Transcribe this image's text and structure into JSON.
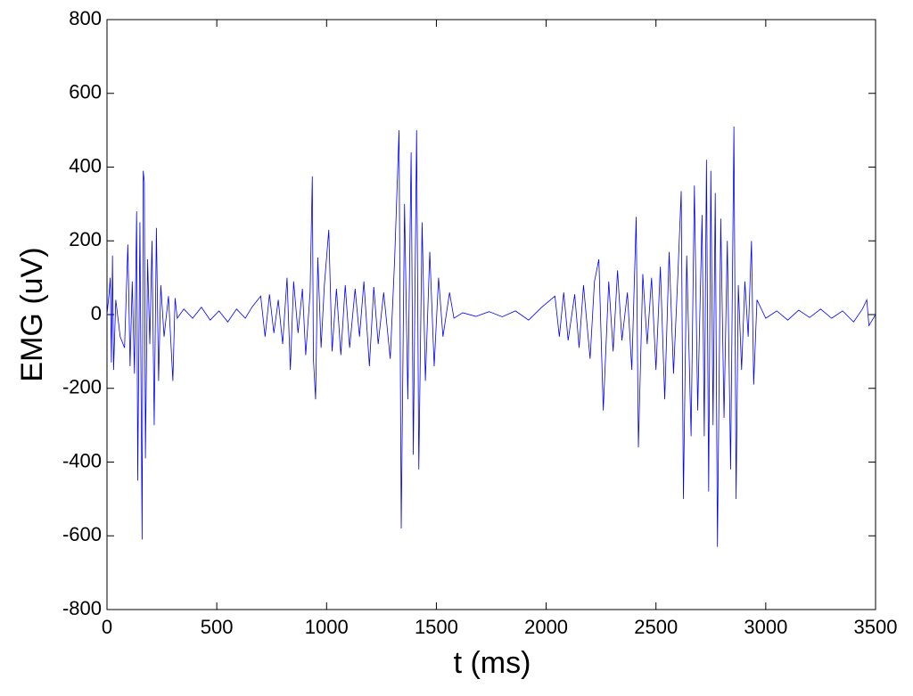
{
  "chart_data": {
    "type": "line",
    "xlabel": "t (ms)",
    "ylabel": "EMG (uV)",
    "xlim": [
      0,
      3500
    ],
    "xticks": [
      0,
      500,
      1000,
      1500,
      2000,
      2500,
      3000,
      3500
    ],
    "ylim": [
      -800,
      800
    ],
    "yticks": [
      -800,
      -600,
      -400,
      -200,
      0,
      200,
      400,
      600,
      800
    ],
    "grid": false,
    "x": [
      0,
      10,
      15,
      20,
      25,
      30,
      40,
      60,
      80,
      95,
      105,
      115,
      125,
      135,
      140,
      150,
      160,
      165,
      170,
      175,
      185,
      195,
      205,
      215,
      225,
      235,
      245,
      260,
      280,
      300,
      310,
      320,
      350,
      390,
      430,
      470,
      510,
      550,
      590,
      630,
      660,
      700,
      720,
      740,
      760,
      780,
      800,
      820,
      835,
      850,
      870,
      890,
      905,
      925,
      935,
      940,
      950,
      960,
      975,
      990,
      1010,
      1025,
      1045,
      1065,
      1085,
      1105,
      1130,
      1150,
      1170,
      1195,
      1215,
      1235,
      1260,
      1290,
      1310,
      1330,
      1340,
      1355,
      1370,
      1385,
      1395,
      1410,
      1420,
      1435,
      1450,
      1470,
      1490,
      1510,
      1530,
      1560,
      1580,
      1620,
      1680,
      1740,
      1800,
      1860,
      1920,
      1980,
      2040,
      2060,
      2080,
      2100,
      2130,
      2150,
      2170,
      2200,
      2220,
      2240,
      2260,
      2285,
      2305,
      2325,
      2345,
      2370,
      2390,
      2410,
      2420,
      2440,
      2460,
      2480,
      2500,
      2520,
      2540,
      2560,
      2580,
      2600,
      2615,
      2625,
      2640,
      2660,
      2675,
      2690,
      2710,
      2720,
      2730,
      2740,
      2750,
      2760,
      2770,
      2780,
      2795,
      2810,
      2825,
      2840,
      2855,
      2865,
      2875,
      2890,
      2905,
      2920,
      2935,
      2945,
      2960,
      3000,
      3050,
      3100,
      3150,
      3200,
      3250,
      3300,
      3350,
      3400,
      3440,
      3460,
      3470,
      3500
    ],
    "series": [
      {
        "name": "EMG",
        "color": "#0000ff",
        "values": [
          0,
          60,
          100,
          -130,
          160,
          -150,
          40,
          -60,
          -90,
          190,
          -140,
          90,
          -160,
          280,
          -450,
          250,
          -610,
          390,
          360,
          -390,
          150,
          -80,
          200,
          -300,
          235,
          -180,
          80,
          -60,
          50,
          -180,
          45,
          -10,
          15,
          -10,
          20,
          -15,
          10,
          -20,
          15,
          -10,
          20,
          50,
          -60,
          55,
          -50,
          40,
          -80,
          100,
          -150,
          90,
          -50,
          70,
          -110,
          60,
          375,
          -120,
          -230,
          155,
          -90,
          80,
          230,
          -100,
          70,
          -110,
          80,
          -90,
          70,
          -60,
          90,
          -140,
          75,
          -80,
          60,
          -120,
          150,
          500,
          -580,
          300,
          -230,
          440,
          -380,
          500,
          -420,
          250,
          -180,
          170,
          -140,
          100,
          -60,
          60,
          -10,
          5,
          -5,
          8,
          -6,
          10,
          -15,
          20,
          50,
          -60,
          60,
          -70,
          55,
          -90,
          80,
          -120,
          90,
          150,
          -260,
          90,
          -100,
          120,
          -70,
          60,
          -150,
          265,
          -360,
          110,
          -80,
          100,
          -150,
          130,
          -230,
          170,
          -160,
          110,
          335,
          -500,
          160,
          -330,
          350,
          -260,
          270,
          -330,
          420,
          -480,
          390,
          -300,
          330,
          -630,
          260,
          -280,
          200,
          -420,
          510,
          -500,
          80,
          -150,
          90,
          -60,
          200,
          -190,
          40,
          -10,
          10,
          -15,
          12,
          -8,
          15,
          -10,
          10,
          -20,
          15,
          40,
          -30,
          0
        ]
      }
    ]
  }
}
